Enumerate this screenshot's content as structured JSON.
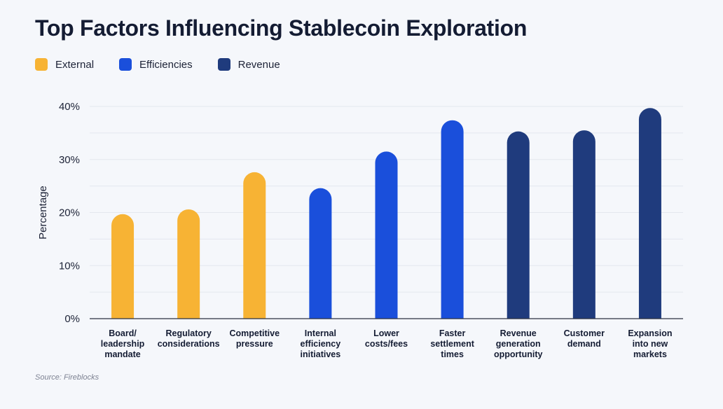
{
  "title": "Top Factors Influencing Stablecoin Exploration",
  "source": "Source: Fireblocks",
  "legend": [
    {
      "name": "External",
      "color": "#F7B334"
    },
    {
      "name": "Efficiencies",
      "color": "#1A4FDB"
    },
    {
      "name": "Revenue",
      "color": "#1F3B7D"
    }
  ],
  "chart_data": {
    "type": "bar",
    "title": "Top Factors Influencing Stablecoin Exploration",
    "xlabel": "",
    "ylabel": "Percentage",
    "ylim": [
      0,
      40
    ],
    "yticks": [
      0,
      10,
      20,
      30,
      40
    ],
    "ytick_labels": [
      "0%",
      "10%",
      "20%",
      "30%",
      "40%"
    ],
    "grid": true,
    "legend_position": "top-left",
    "categories": [
      "Board/ leadership mandate",
      "Regulatory considerations",
      "Competitive pressure",
      "Internal efficiency initiatives",
      "Lower costs/fees",
      "Faster settlement times",
      "Revenue generation opportunity",
      "Customer demand",
      "Expansion into new markets"
    ],
    "category_lines": [
      [
        "Board/",
        "leadership",
        "mandate"
      ],
      [
        "Regulatory",
        "considerations"
      ],
      [
        "Competitive",
        "pressure"
      ],
      [
        "Internal",
        "efficiency",
        "initiatives"
      ],
      [
        "Lower",
        "costs/fees"
      ],
      [
        "Faster",
        "settlement",
        "times"
      ],
      [
        "Revenue",
        "generation",
        "opportunity"
      ],
      [
        "Customer",
        "demand"
      ],
      [
        "Expansion",
        "into new",
        "markets"
      ]
    ],
    "values": [
      19.7,
      20.6,
      27.6,
      24.6,
      31.5,
      37.4,
      35.3,
      35.5,
      39.7
    ],
    "groups": [
      "External",
      "External",
      "External",
      "Efficiencies",
      "Efficiencies",
      "Efficiencies",
      "Revenue",
      "Revenue",
      "Revenue"
    ]
  }
}
